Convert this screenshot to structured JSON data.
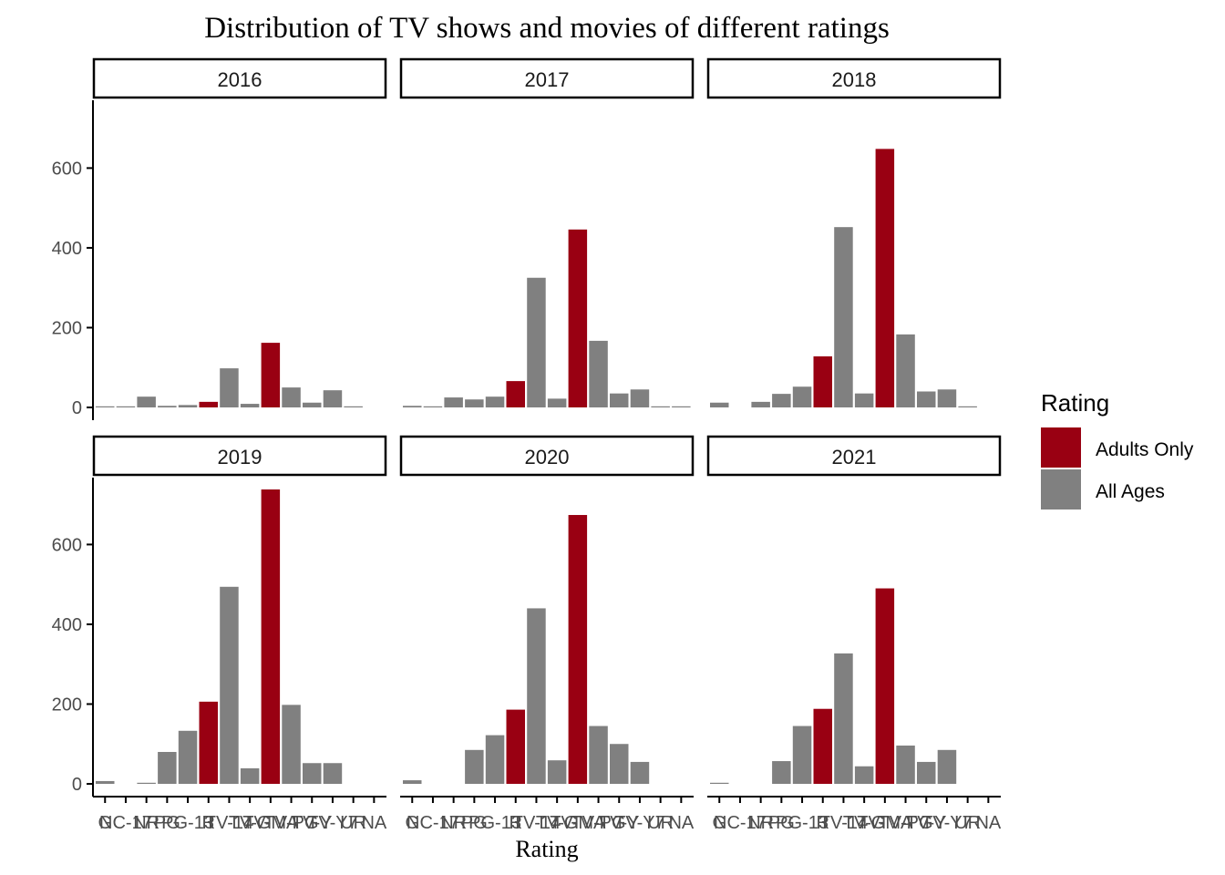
{
  "chart_data": {
    "type": "bar",
    "title": "Distribution of TV shows and movies of different ratings",
    "xlabel": "Rating",
    "ylabel": "",
    "ylim": [
      0,
      770
    ],
    "yticks": [
      0,
      200,
      400,
      600
    ],
    "categories": [
      "G",
      "NC-17",
      "NR",
      "PG",
      "PG-13",
      "R",
      "TV-14",
      "TV-G",
      "TV-MA",
      "TV-PG",
      "TV-Y",
      "TV-Y7",
      "UR",
      "NA"
    ],
    "category_groups": [
      "All Ages",
      "All Ages",
      "All Ages",
      "All Ages",
      "All Ages",
      "Adults Only",
      "All Ages",
      "All Ages",
      "Adults Only",
      "All Ages",
      "All Ages",
      "All Ages",
      "All Ages",
      "All Ages"
    ],
    "legend": {
      "title": "Rating",
      "position": "right",
      "entries": [
        {
          "name": "Adults Only",
          "color": "#990012"
        },
        {
          "name": "All Ages",
          "color": "#808080"
        }
      ]
    },
    "panels": [
      {
        "label": "2016",
        "values": [
          1,
          2,
          27,
          4,
          6,
          14,
          98,
          9,
          162,
          50,
          12,
          43,
          2,
          0
        ]
      },
      {
        "label": "2017",
        "values": [
          4,
          2,
          25,
          20,
          27,
          66,
          325,
          22,
          446,
          167,
          35,
          45,
          2,
          1
        ]
      },
      {
        "label": "2018",
        "values": [
          12,
          0,
          14,
          34,
          52,
          128,
          452,
          35,
          648,
          183,
          40,
          45,
          2,
          0
        ]
      },
      {
        "label": "2019",
        "values": [
          7,
          0,
          2,
          80,
          133,
          206,
          494,
          39,
          738,
          198,
          52,
          52,
          0,
          0
        ]
      },
      {
        "label": "2020",
        "values": [
          9,
          0,
          0,
          85,
          122,
          186,
          440,
          59,
          674,
          145,
          100,
          55,
          0,
          0
        ]
      },
      {
        "label": "2021",
        "values": [
          2,
          0,
          0,
          57,
          145,
          188,
          327,
          44,
          490,
          96,
          55,
          85,
          0,
          0
        ]
      }
    ]
  },
  "colors": {
    "adults_only": "#990012",
    "all_ages": "#808080",
    "axis": "#000000",
    "tick_text": "#4d4d4d"
  }
}
